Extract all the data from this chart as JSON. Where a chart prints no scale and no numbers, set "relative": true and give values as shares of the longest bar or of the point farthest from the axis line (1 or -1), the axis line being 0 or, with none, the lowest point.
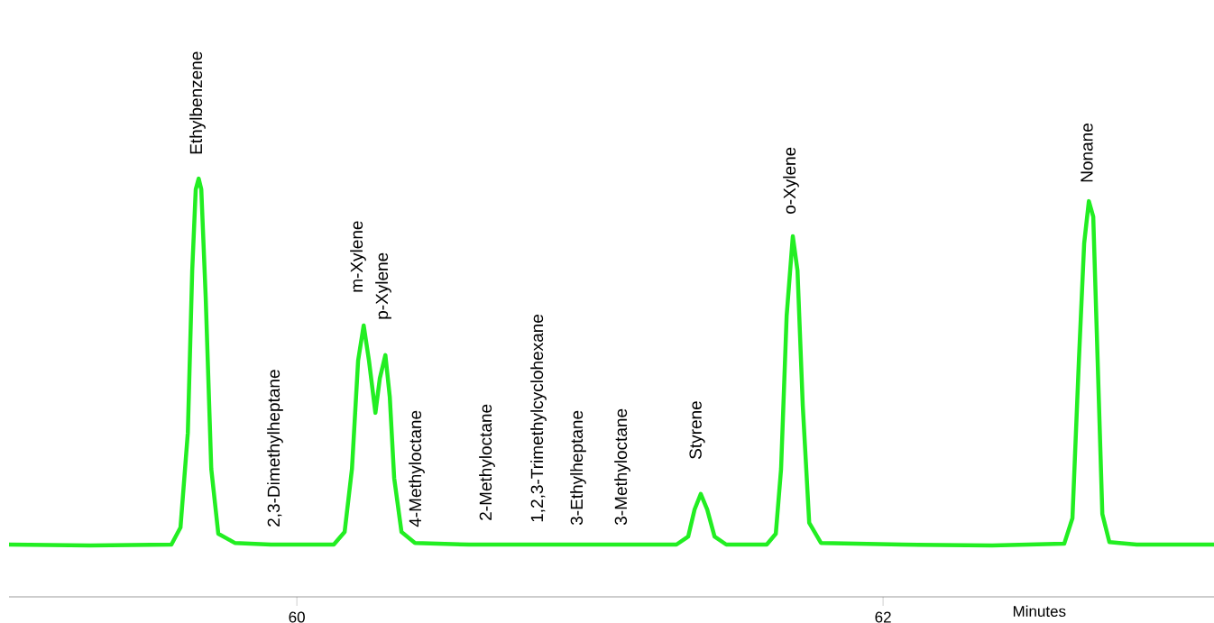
{
  "chart_data": {
    "type": "line",
    "relative": true,
    "xlabel": "Minutes",
    "color": "#22ee22",
    "xlim": [
      59.018,
      63.129
    ],
    "xticks": [
      60,
      62
    ],
    "x": [
      59.018,
      59.295,
      59.572,
      59.603,
      59.628,
      59.643,
      59.655,
      59.665,
      59.674,
      59.689,
      59.708,
      59.732,
      59.788,
      59.911,
      60.126,
      60.163,
      60.188,
      60.209,
      60.228,
      60.246,
      60.268,
      60.283,
      60.302,
      60.317,
      60.332,
      60.357,
      60.403,
      60.588,
      60.834,
      61.142,
      61.295,
      61.335,
      61.357,
      61.378,
      61.4,
      61.425,
      61.465,
      61.603,
      61.634,
      61.652,
      61.671,
      61.692,
      61.708,
      61.726,
      61.748,
      61.788,
      62.065,
      62.372,
      62.618,
      62.646,
      62.668,
      62.686,
      62.702,
      62.717,
      62.732,
      62.748,
      62.772,
      62.865,
      63.129
    ],
    "values": [
      0.125,
      0.123,
      0.125,
      0.166,
      0.392,
      0.78,
      0.974,
      1.0,
      0.974,
      0.716,
      0.306,
      0.151,
      0.129,
      0.125,
      0.125,
      0.155,
      0.306,
      0.565,
      0.649,
      0.565,
      0.44,
      0.522,
      0.578,
      0.478,
      0.284,
      0.155,
      0.129,
      0.125,
      0.125,
      0.125,
      0.125,
      0.144,
      0.209,
      0.246,
      0.209,
      0.144,
      0.125,
      0.125,
      0.151,
      0.306,
      0.672,
      0.862,
      0.78,
      0.457,
      0.177,
      0.129,
      0.125,
      0.123,
      0.127,
      0.188,
      0.565,
      0.845,
      0.946,
      0.909,
      0.565,
      0.198,
      0.131,
      0.125,
      0.125
    ],
    "annotations": [
      "Ethylbenzene",
      "2,3-Dimethylheptane",
      "m-Xylene",
      "p-Xylene",
      "4-Methyloctane",
      "2-Methyloctane",
      "1,2,3-Trimethylcyclohexane",
      "3-Ethylheptane",
      "3-Methyloctane",
      "Styrene",
      "o-Xylene",
      "Nonane"
    ]
  }
}
